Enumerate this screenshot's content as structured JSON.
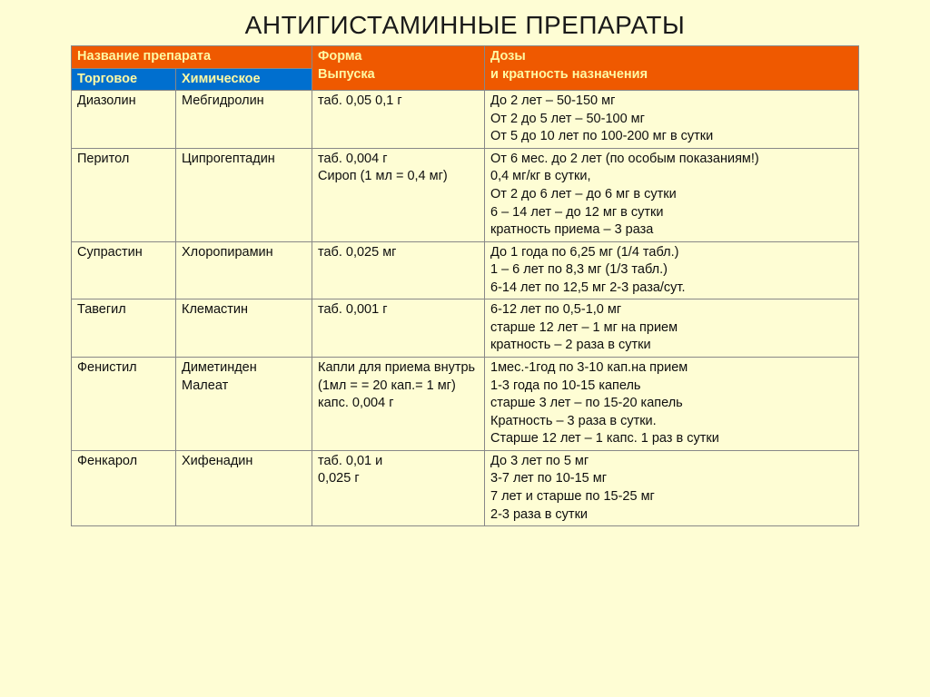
{
  "colors": {
    "page_bg": "#fefdd4",
    "header_orange": "#ef5900",
    "subheader_blue": "#006fcf",
    "header_text": "#fdf9a4",
    "cell_bg": "#fefdd4",
    "border": "#888888",
    "title_text": "#1a1a1a",
    "body_text": "#0e0e0e"
  },
  "title": "АНТИГИСТАМИННЫЕ ПРЕПАРАТЫ",
  "headers": {
    "name": "Название препарата",
    "trade": "Торговое",
    "chemical": "Химическое",
    "form_l1": "Форма",
    "form_l2": "Выпуска",
    "dose_l1": "Дозы",
    "dose_l2": "и кратность назначения"
  },
  "rows": [
    {
      "trade": "Диазолин",
      "chem": "Мебгидролин",
      "form": "таб. 0,05 0,1 г",
      "dose": "До 2 лет – 50-150 мг\nОт 2 до 5 лет – 50-100 мг\nОт 5 до 10 лет по 100-200 мг в сутки"
    },
    {
      "trade": "Перитол",
      "chem": "Ципрогептадин",
      "form": "таб. 0,004 г\nСироп (1 мл = 0,4 мг)",
      "dose": "От 6 мес. до 2 лет (по особым показаниям!)\n0,4 мг/кг в сутки,\nОт 2 до 6 лет – до 6 мг в сутки\n6 – 14 лет – до 12 мг в сутки\nкратность приема – 3 раза"
    },
    {
      "trade": "Супрастин",
      "chem": "Хлоропирамин",
      "form": "таб. 0,025 мг",
      "dose": "До 1 года по 6,25 мг (1/4 табл.)\n1 – 6 лет по 8,3 мг (1/3 табл.)\n6-14 лет по 12,5 мг 2-3 раза/сут."
    },
    {
      "trade": "Тавегил",
      "chem": "Клемастин",
      "form": "таб. 0,001 г",
      "dose": "6-12 лет по 0,5-1,0 мг\nстарше 12 лет – 1 мг на прием\nкратность – 2 раза в сутки"
    },
    {
      "trade": "Фенистил",
      "chem": "Диметинден Малеат",
      "form": "Капли для приема внутрь\n(1мл = = 20 кап.= 1 мг) капс. 0,004 г",
      "dose": "1мес.-1год по 3-10 кап.на прием\n1-3 года по 10-15 капель\nстарше 3 лет – по 15-20 капель\nКратность – 3 раза в сутки.\nСтарше 12 лет – 1 капс. 1 раз в сутки"
    },
    {
      "trade": "Фенкарол",
      "chem": "Хифенадин",
      "form": "таб. 0,01 и\n0,025 г",
      "dose": "До 3 лет по 5 мг\n3-7 лет по 10-15 мг\n7 лет и старше по 15-25 мг\n2-3 раза в сутки"
    }
  ]
}
